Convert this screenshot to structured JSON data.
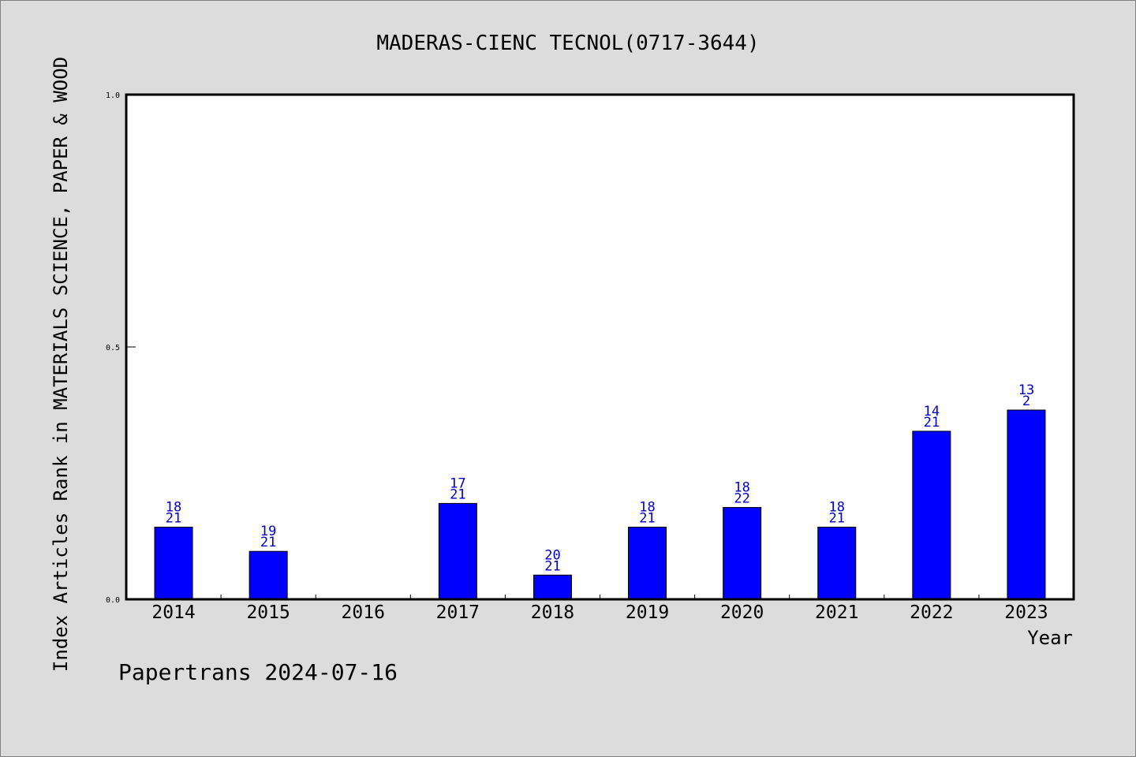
{
  "chart_data": {
    "type": "bar",
    "title": "MADERAS-CIENC TECNOL(0717-3644)",
    "xlabel": "Year",
    "ylabel": "Index Articles Rank in MATERIALS SCIENCE, PAPER & WOOD",
    "ylim": [
      0,
      1.0
    ],
    "yticks": [
      "0.0",
      "0.5",
      "1.0"
    ],
    "categories": [
      "2014",
      "2015",
      "2016",
      "2017",
      "2018",
      "2019",
      "2020",
      "2021",
      "2022",
      "2023"
    ],
    "values": [
      0.143,
      0.095,
      0.0,
      0.19,
      0.048,
      0.143,
      0.182,
      0.143,
      0.333,
      0.375
    ],
    "rank_labels": [
      "18",
      "19",
      "",
      "17",
      "20",
      "18",
      "18",
      "18",
      "14",
      "13"
    ],
    "total_labels": [
      "21",
      "21",
      "",
      "21",
      "21",
      "21",
      "22",
      "21",
      "21",
      "2"
    ],
    "bar_color": "#0000ff",
    "label_color": "#0000cc",
    "grid": false
  },
  "footer": {
    "text": "Papertrans 2024-07-16"
  }
}
